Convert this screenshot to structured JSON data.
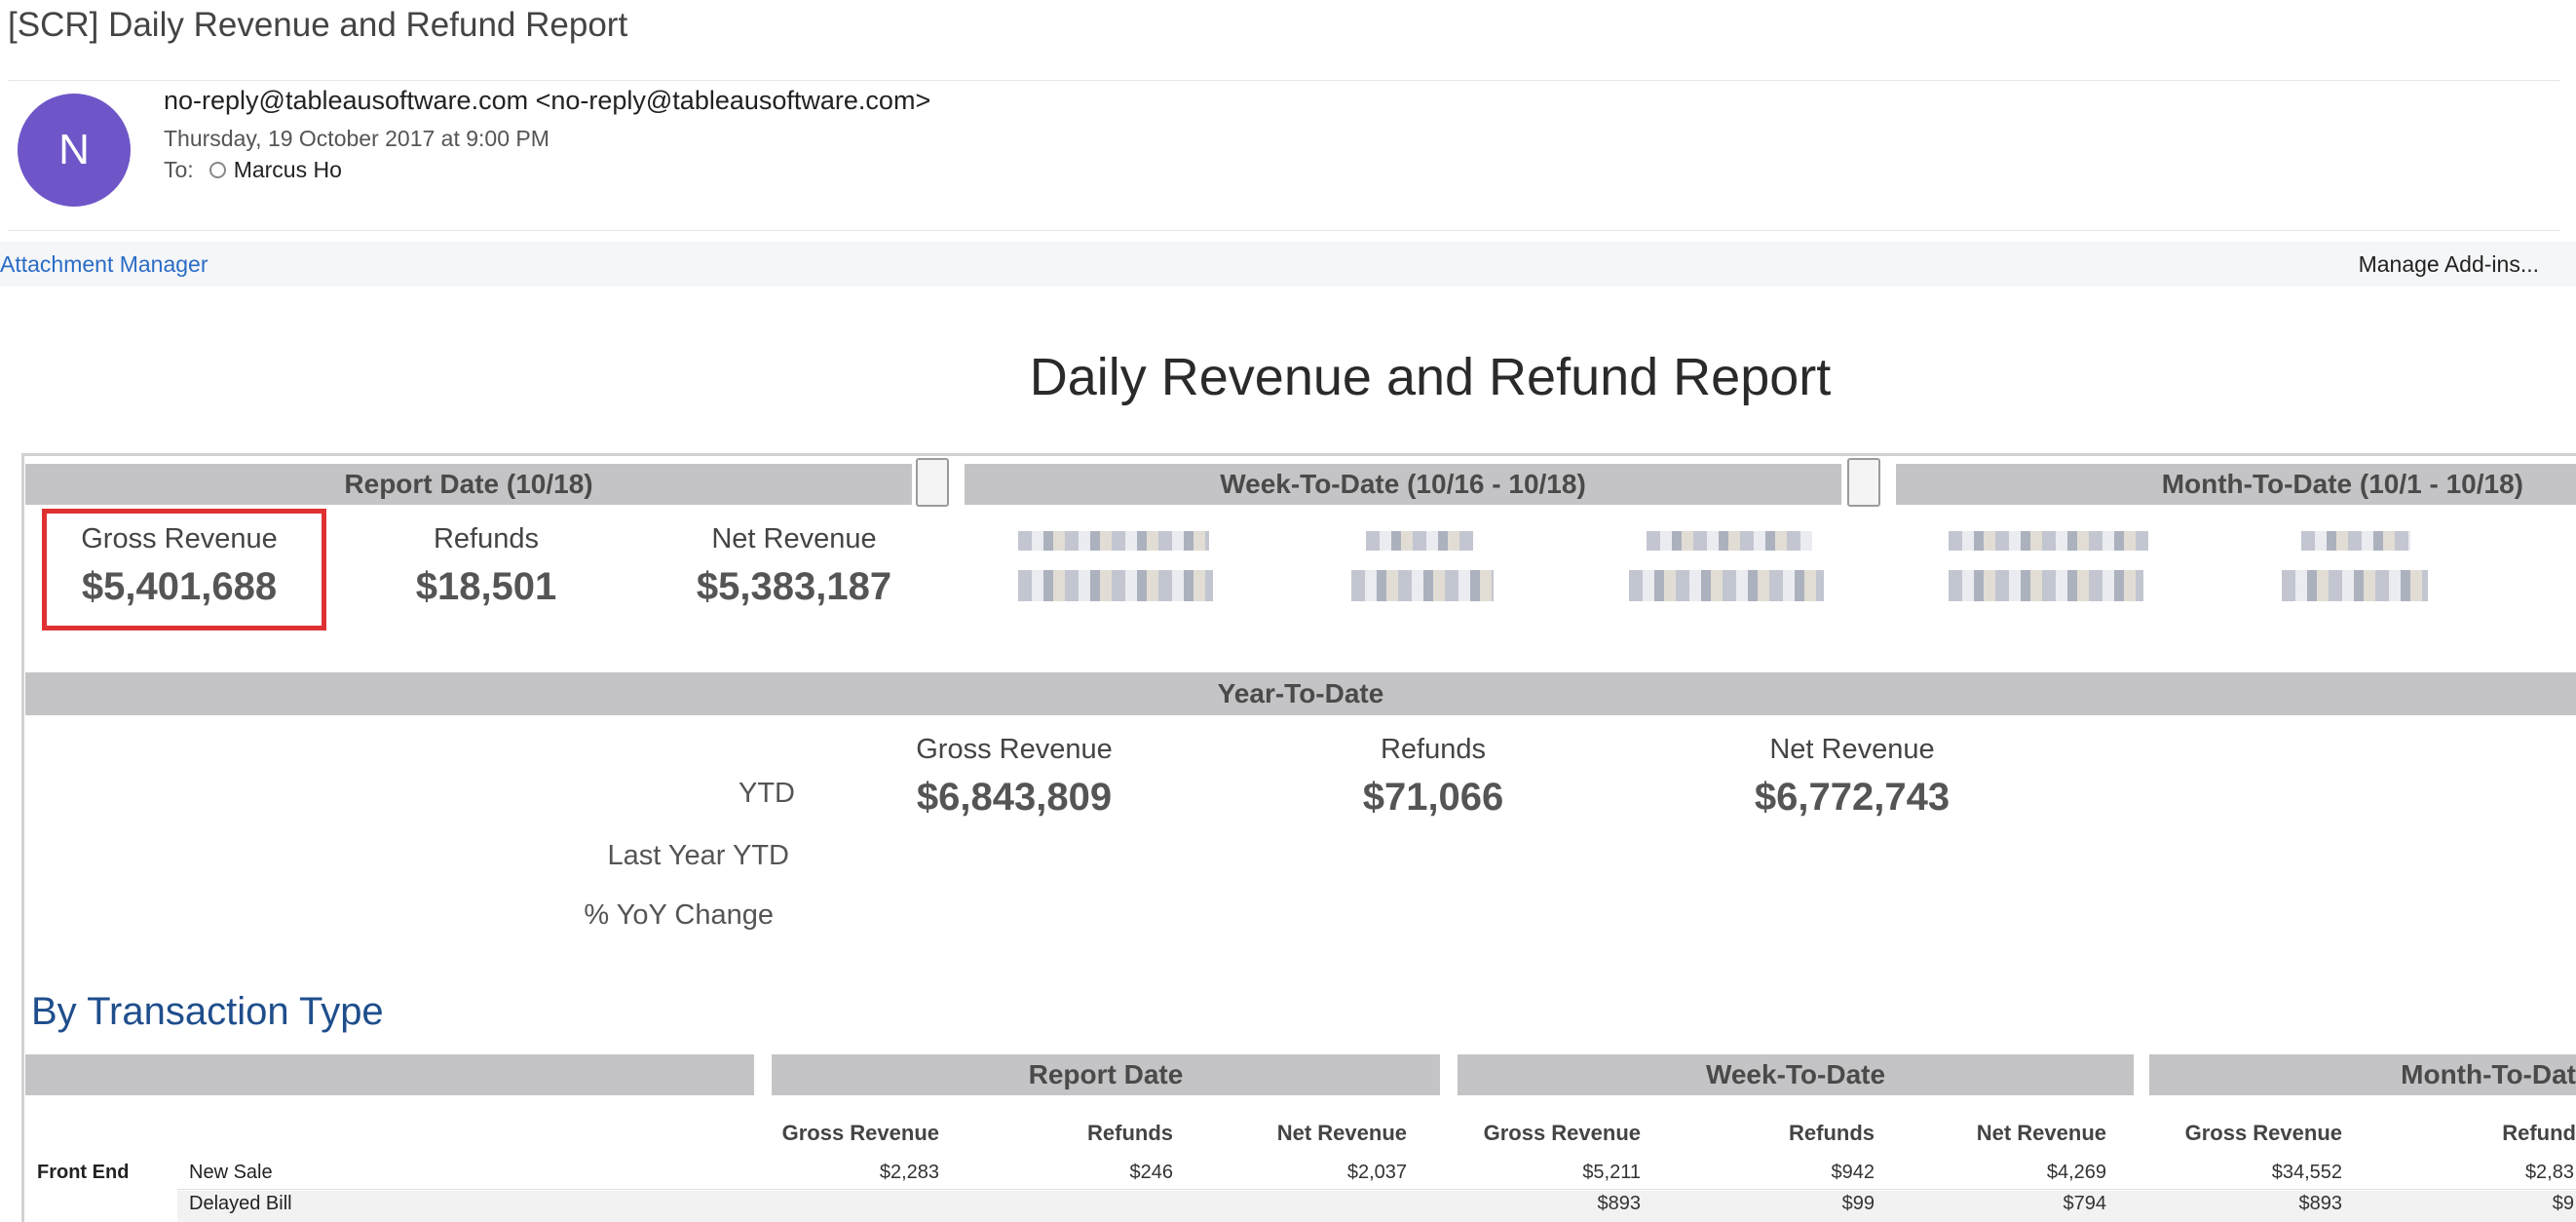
{
  "email": {
    "subject": "[SCR] Daily Revenue and Refund Report",
    "avatar_letter": "N",
    "sender": "no-reply@tableausoftware.com <no-reply@tableausoftware.com>",
    "date": "Thursday, 19 October 2017 at 9:00 PM",
    "to_label": "To:",
    "to_name": "Marcus Ho",
    "attachment_manager": "Attachment Manager",
    "manage_addins": "Manage Add-ins..."
  },
  "report": {
    "title": "Daily Revenue and Refund Report",
    "bands": {
      "report_date": "Report Date (10/18)",
      "week_to_date": "Week-To-Date (10/16 - 10/18)",
      "month_to_date": "Month-To-Date (10/1 - 10/18)"
    },
    "report_date_metrics": [
      {
        "label": "Gross Revenue",
        "value": "$5,401,688"
      },
      {
        "label": "Refunds",
        "value": "$18,501"
      },
      {
        "label": "Net Revenue",
        "value": "$5,383,187"
      }
    ],
    "ytd": {
      "band": "Year-To-Date",
      "column_labels": [
        "Gross Revenue",
        "Refunds",
        "Net Revenue"
      ],
      "row_labels": [
        "YTD",
        "Last Year YTD",
        "% YoY Change"
      ],
      "values": [
        "$6,843,809",
        "$71,066",
        "$6,772,743"
      ]
    }
  },
  "by_transaction_type": {
    "heading": "By Transaction Type",
    "groups": [
      "Report Date",
      "Week-To-Date",
      "Month-To-Dat"
    ],
    "columns": [
      "Gross Revenue",
      "Refunds",
      "Net Revenue",
      "Gross Revenue",
      "Refunds",
      "Net Revenue",
      "Gross Revenue",
      "Refund"
    ],
    "rows": [
      {
        "group": "Front End",
        "type": "New Sale",
        "values": [
          "$2,283",
          "$246",
          "$2,037",
          "$5,211",
          "$942",
          "$4,269",
          "$34,552",
          "$2,83"
        ]
      },
      {
        "group": "",
        "type": "Delayed Bill",
        "values": [
          "",
          "",
          "",
          "$893",
          "$99",
          "$794",
          "$893",
          "$9"
        ]
      }
    ]
  }
}
